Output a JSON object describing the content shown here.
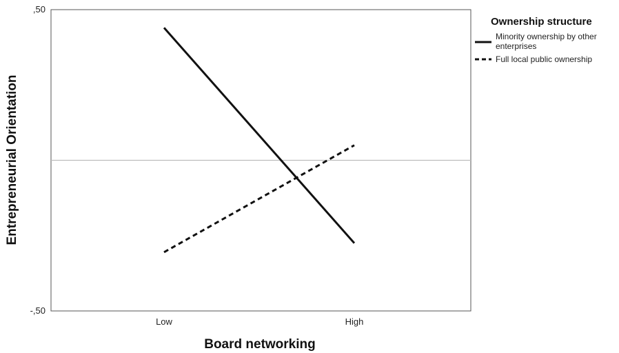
{
  "chart_data": {
    "type": "line",
    "categories": [
      "Low",
      "High"
    ],
    "xlabel": "Board networking",
    "ylabel": "Entrepreneurial Orientation",
    "ylim": [
      -0.5,
      0.5
    ],
    "y_tick_labels": [
      ",50",
      "-,50"
    ],
    "reference_line": 0.0,
    "legend": {
      "title": "Ownership structure",
      "position": "right-outside"
    },
    "series": [
      {
        "name": "Minority ownership by other enterprises",
        "style": "solid",
        "color": "#111111",
        "values": [
          0.44,
          -0.275
        ]
      },
      {
        "name": "Full local public ownership",
        "style": "dashed",
        "color": "#111111",
        "values": [
          -0.305,
          0.05
        ]
      }
    ]
  }
}
